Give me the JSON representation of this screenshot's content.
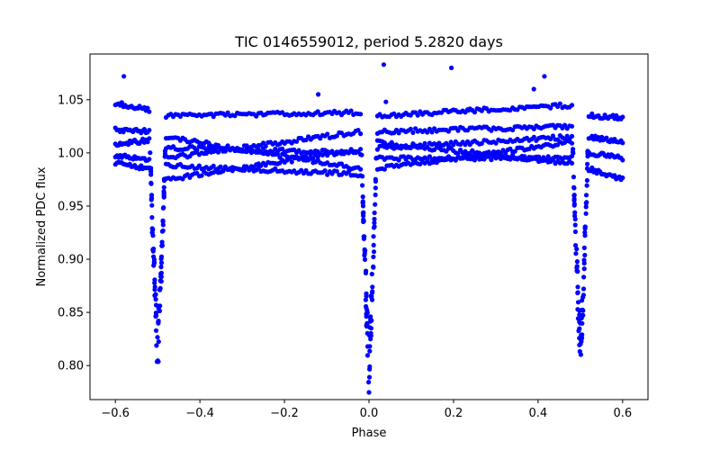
{
  "chart_data": {
    "type": "scatter",
    "title": "TIC 0146559012, period 5.2820 days",
    "xlabel": "Phase",
    "ylabel": "Normalized PDC flux",
    "xlim": [
      -0.66,
      0.66
    ],
    "ylim": [
      0.768,
      1.093
    ],
    "xticks": [
      -0.6,
      -0.4,
      -0.2,
      0.0,
      0.2,
      0.4,
      0.6
    ],
    "xtick_labels": [
      "−0.6",
      "−0.4",
      "−0.2",
      "0.0",
      "0.2",
      "0.4",
      "0.6"
    ],
    "yticks": [
      0.8,
      0.85,
      0.9,
      0.95,
      1.0,
      1.05
    ],
    "ytick_labels": [
      "0.80",
      "0.85",
      "0.90",
      "0.95",
      "1.00",
      "1.05"
    ],
    "grid": false,
    "legend": "none",
    "marker_color": "#0000ff",
    "series": [
      {
        "name": "",
        "bands": [
          {
            "x": [
              -0.6,
              -0.52
            ],
            "y": [
              1.047,
              1.04
            ]
          },
          {
            "x": [
              -0.6,
              -0.52
            ],
            "y": [
              1.022,
              1.02
            ]
          },
          {
            "x": [
              -0.6,
              -0.52
            ],
            "y": [
              1.008,
              1.012
            ]
          },
          {
            "x": [
              -0.6,
              -0.52
            ],
            "y": [
              0.998,
              0.993
            ]
          },
          {
            "x": [
              -0.6,
              -0.52
            ],
            "y": [
              0.99,
              0.985
            ]
          },
          {
            "x": [
              -0.48,
              -0.02
            ],
            "y": [
              1.035,
              1.038
            ]
          },
          {
            "x": [
              -0.48,
              -0.02
            ],
            "y": [
              1.015,
              0.985
            ]
          },
          {
            "x": [
              -0.48,
              -0.02
            ],
            "y": [
              1.005,
              1.0
            ]
          },
          {
            "x": [
              -0.48,
              -0.02
            ],
            "y": [
              0.995,
              1.02
            ]
          },
          {
            "x": [
              -0.48,
              -0.02
            ],
            "y": [
              0.988,
              0.98
            ]
          },
          {
            "x": [
              -0.48,
              -0.02
            ],
            "y": [
              0.975,
              1.003
            ]
          },
          {
            "x": [
              0.02,
              0.48
            ],
            "y": [
              1.035,
              1.045
            ]
          },
          {
            "x": [
              0.02,
              0.48
            ],
            "y": [
              1.02,
              1.025
            ]
          },
          {
            "x": [
              0.02,
              0.48
            ],
            "y": [
              1.005,
              1.015
            ]
          },
          {
            "x": [
              0.02,
              0.48
            ],
            "y": [
              0.995,
              0.995
            ]
          },
          {
            "x": [
              0.02,
              0.48
            ],
            "y": [
              0.985,
              1.01
            ]
          },
          {
            "x": [
              0.02,
              0.48
            ],
            "y": [
              1.01,
              0.99
            ]
          },
          {
            "x": [
              0.52,
              0.6
            ],
            "y": [
              1.035,
              1.033
            ]
          },
          {
            "x": [
              0.52,
              0.6
            ],
            "y": [
              1.015,
              1.01
            ]
          },
          {
            "x": [
              0.52,
              0.6
            ],
            "y": [
              1.0,
              0.995
            ]
          },
          {
            "x": [
              0.52,
              0.6
            ],
            "y": [
              0.985,
              0.975
            ]
          }
        ],
        "eclipses": [
          {
            "center": -0.5,
            "half_width": 0.018,
            "depth_min": 0.785
          },
          {
            "center": 0.0,
            "half_width": 0.018,
            "depth_min": 0.77
          },
          {
            "center": 0.5,
            "half_width": 0.018,
            "depth_min": 0.785
          }
        ],
        "outliers": [
          {
            "x": -0.58,
            "y": 1.072
          },
          {
            "x": -0.12,
            "y": 1.055
          },
          {
            "x": 0.035,
            "y": 1.083
          },
          {
            "x": 0.195,
            "y": 1.08
          },
          {
            "x": 0.39,
            "y": 1.06
          },
          {
            "x": 0.415,
            "y": 1.072
          },
          {
            "x": 0.235,
            "y": 1.04
          },
          {
            "x": 0.04,
            "y": 1.048
          }
        ]
      }
    ]
  }
}
